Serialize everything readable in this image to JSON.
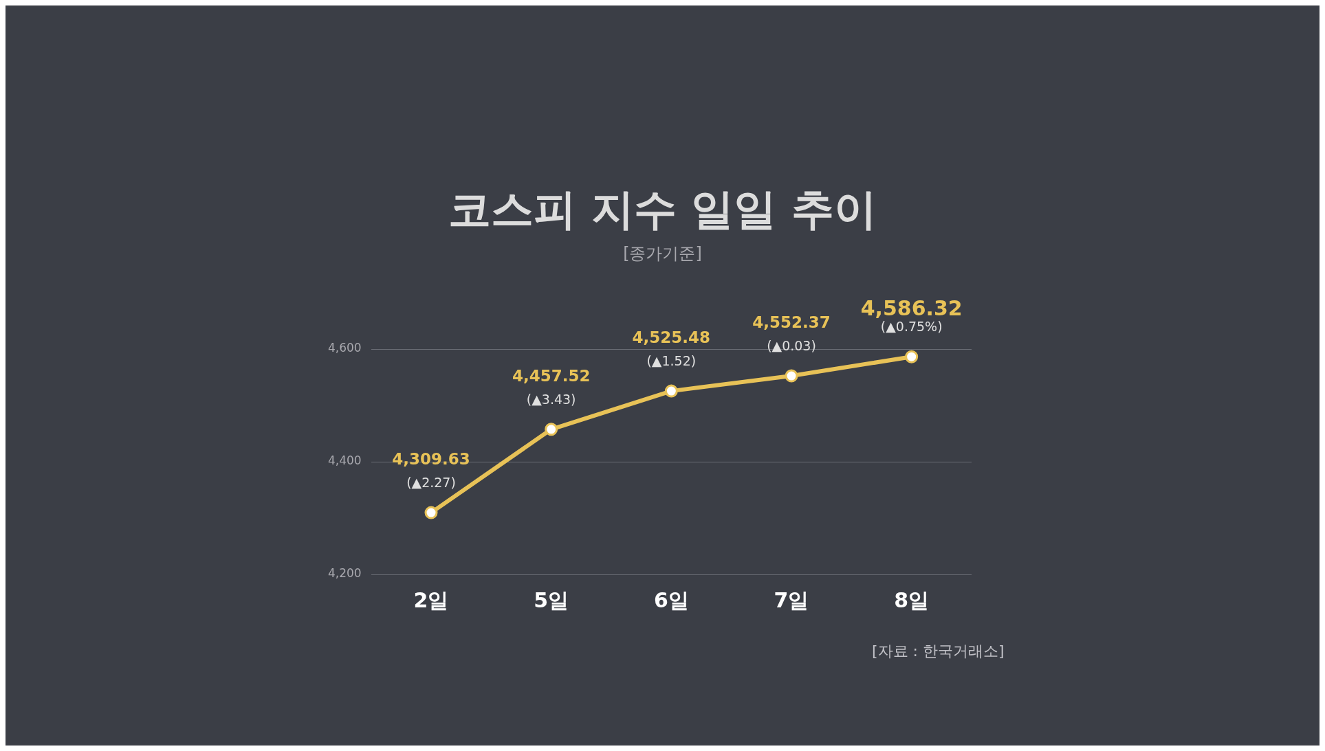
{
  "chart_data": {
    "type": "line",
    "title": "코스피 지수 일일 추이",
    "subtitle": "[종가기준]",
    "categories": [
      "2일",
      "5일",
      "6일",
      "7일",
      "8일"
    ],
    "series": [
      {
        "color": "#e8c257",
        "values": [
          4309.63,
          4457.52,
          4525.48,
          4552.37,
          4586.32
        ],
        "value_labels": [
          "4,309.63",
          "4,457.52",
          "4,525.48",
          "4,552.37",
          "4,586.32"
        ]
      }
    ],
    "ylim": [
      4200,
      4600
    ],
    "yticks": [
      {
        "value": 4200,
        "label": "4,200"
      },
      {
        "value": 4400,
        "label": "4,400"
      },
      {
        "value": 4600,
        "label": "4,600"
      }
    ],
    "grid": "y",
    "legend": false,
    "marker": "circle",
    "line_style": "solid",
    "annotations": [
      {
        "text": "(▲2.27)",
        "x": "2일",
        "y": 4309.63
      },
      {
        "text": "(▲3.43)",
        "x": "5일",
        "y": 4457.52
      },
      {
        "text": "(▲1.52)",
        "x": "6일",
        "y": 4525.48
      },
      {
        "text": "(▲0.03)",
        "x": "7일",
        "y": 4552.37
      },
      {
        "text": "(▲0.75%)",
        "x": "8일",
        "y": 4586.32
      },
      "[자료 : 한국거래소]"
    ]
  }
}
